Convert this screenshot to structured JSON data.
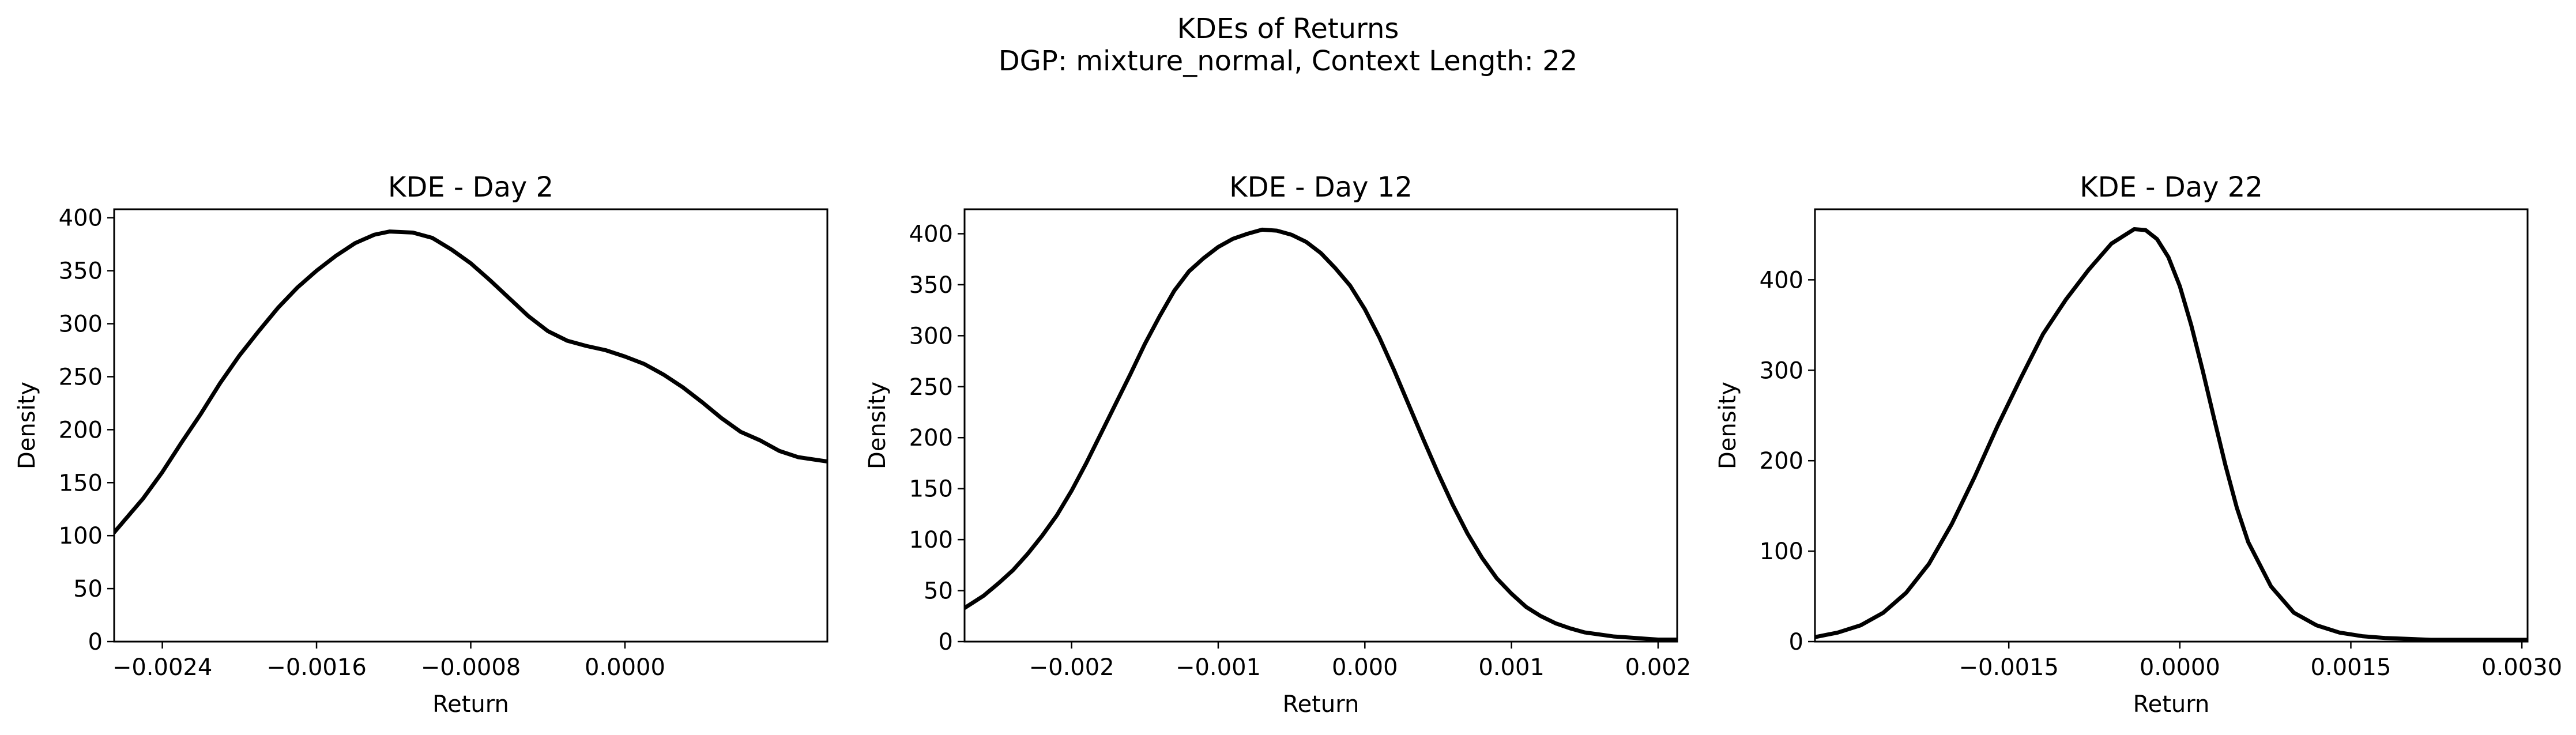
{
  "figure": {
    "title_line1": "KDEs of Returns",
    "title_line2": "DGP: mixture_normal, Context Length: 22"
  },
  "colors": {
    "line": "#000000",
    "axes": "#000000",
    "background": "#ffffff"
  },
  "chart_data": [
    {
      "type": "line",
      "title": "KDE - Day 2",
      "xlabel": "Return",
      "ylabel": "Density",
      "xlim": [
        -0.00265,
        0.00105
      ],
      "ylim": [
        0,
        408
      ],
      "xticks": [
        -0.0024,
        -0.0016,
        -0.0008,
        0.0
      ],
      "xtick_labels": [
        "−0.0024",
        "−0.0016",
        "−0.0008",
        "0.0000"
      ],
      "yticks": [
        0,
        50,
        100,
        150,
        200,
        250,
        300,
        350,
        400
      ],
      "ytick_labels": [
        "0",
        "50",
        "100",
        "150",
        "200",
        "250",
        "300",
        "350",
        "400"
      ],
      "grid": false,
      "series": [
        {
          "x": [
            -0.00265,
            -0.0025,
            -0.0024,
            -0.0023,
            -0.0022,
            -0.0021,
            -0.002,
            -0.0019,
            -0.0018,
            -0.0017,
            -0.0016,
            -0.0015,
            -0.0014,
            -0.0013,
            -0.00122,
            -0.0011,
            -0.001,
            -0.0009,
            -0.0008,
            -0.0007,
            -0.0006,
            -0.0005,
            -0.0004,
            -0.0003,
            -0.0002,
            -0.0001,
            0.0,
            0.0001,
            0.0002,
            0.0003,
            0.0004,
            0.0005,
            0.0006,
            0.0007,
            0.0008,
            0.0009,
            0.00105
          ],
          "y": [
            103,
            135,
            160,
            188,
            215,
            244,
            270,
            293,
            315,
            334,
            350,
            364,
            376,
            384,
            387,
            386,
            381,
            370,
            357,
            341,
            324,
            307,
            293,
            284,
            279,
            275,
            269,
            262,
            252,
            240,
            226,
            211,
            198,
            190,
            180,
            174,
            170
          ]
        }
      ]
    },
    {
      "type": "line",
      "title": "KDE - Day 12",
      "xlabel": "Return",
      "ylabel": "Density",
      "xlim": [
        -0.00273,
        0.00213
      ],
      "ylim": [
        0,
        424
      ],
      "xticks": [
        -0.002,
        -0.001,
        0.0,
        0.001,
        0.002
      ],
      "xtick_labels": [
        "−0.002",
        "−0.001",
        "0.000",
        "0.001",
        "0.002"
      ],
      "yticks": [
        0,
        50,
        100,
        150,
        200,
        250,
        300,
        350,
        400
      ],
      "ytick_labels": [
        "0",
        "50",
        "100",
        "150",
        "200",
        "250",
        "300",
        "350",
        "400"
      ],
      "grid": false,
      "series": [
        {
          "x": [
            -0.00273,
            -0.0026,
            -0.0025,
            -0.0024,
            -0.0023,
            -0.0022,
            -0.0021,
            -0.002,
            -0.0019,
            -0.0018,
            -0.0017,
            -0.0016,
            -0.0015,
            -0.0014,
            -0.0013,
            -0.0012,
            -0.0011,
            -0.001,
            -0.0009,
            -0.0008,
            -0.0007,
            -0.0006,
            -0.0005,
            -0.0004,
            -0.0003,
            -0.0002,
            -0.0001,
            0.0,
            0.0001,
            0.0002,
            0.0003,
            0.0004,
            0.0005,
            0.0006,
            0.0007,
            0.0008,
            0.0009,
            0.001,
            0.0011,
            0.0012,
            0.0013,
            0.0014,
            0.0015,
            0.0016,
            0.0017,
            0.0018,
            0.0019,
            0.002,
            0.00213
          ],
          "y": [
            33,
            45,
            57,
            70,
            86,
            104,
            124,
            148,
            175,
            204,
            233,
            262,
            292,
            319,
            344,
            363,
            376,
            387,
            395,
            400,
            404,
            403,
            399,
            392,
            381,
            366,
            349,
            326,
            298,
            266,
            232,
            198,
            165,
            134,
            106,
            82,
            62,
            47,
            34,
            25,
            18,
            13,
            9,
            7,
            5,
            4,
            3,
            2,
            2
          ]
        }
      ]
    },
    {
      "type": "line",
      "title": "KDE - Day 22",
      "xlabel": "Return",
      "ylabel": "Density",
      "xlim": [
        -0.0032,
        0.00305
      ],
      "ylim": [
        0,
        478
      ],
      "xticks": [
        -0.0015,
        0.0,
        0.0015,
        0.003
      ],
      "xtick_labels": [
        "−0.0015",
        "0.0000",
        "0.0015",
        "0.0030"
      ],
      "yticks": [
        0,
        100,
        200,
        300,
        400
      ],
      "ytick_labels": [
        "0",
        "100",
        "200",
        "300",
        "400"
      ],
      "grid": false,
      "series": [
        {
          "x": [
            -0.0032,
            -0.003,
            -0.0028,
            -0.0026,
            -0.0024,
            -0.0022,
            -0.002,
            -0.0018,
            -0.0016,
            -0.0014,
            -0.0012,
            -0.001,
            -0.0008,
            -0.0006,
            -0.0004,
            -0.0003,
            -0.0002,
            -0.0001,
            0.0,
            0.0001,
            0.0002,
            0.0003,
            0.0004,
            0.0005,
            0.0006,
            0.0008,
            0.001,
            0.0012,
            0.0014,
            0.0016,
            0.0018,
            0.002,
            0.0022,
            0.0024,
            0.0026,
            0.0028,
            0.003,
            0.00305
          ],
          "y": [
            5,
            10,
            18,
            32,
            54,
            86,
            130,
            182,
            238,
            290,
            340,
            378,
            411,
            440,
            456,
            455,
            445,
            425,
            393,
            350,
            300,
            247,
            195,
            148,
            110,
            61,
            32,
            18,
            10,
            6,
            4,
            3,
            2,
            2,
            2,
            2,
            2,
            2
          ]
        }
      ]
    }
  ]
}
